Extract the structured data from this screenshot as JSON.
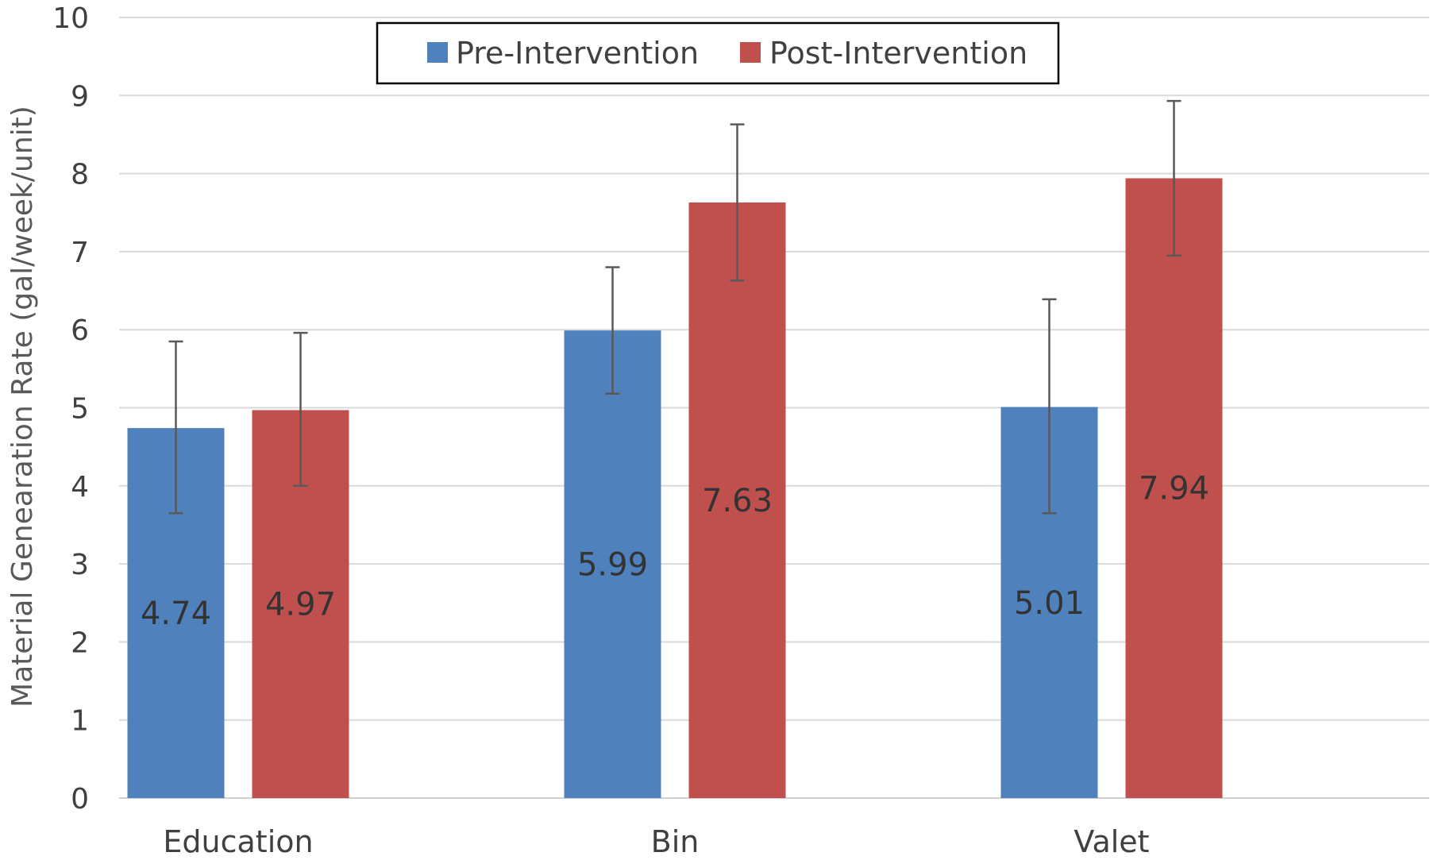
{
  "chart_data": {
    "type": "bar",
    "title": "",
    "xlabel": "",
    "ylabel": "Material Genearation Rate (gal/week/unit)",
    "ylim": [
      0,
      10
    ],
    "yticks": [
      0,
      1,
      2,
      3,
      4,
      5,
      6,
      7,
      8,
      9,
      10
    ],
    "grid": "horizontal",
    "legend_position": "top-center",
    "categories": [
      "Education",
      "Bin",
      "Valet"
    ],
    "series": [
      {
        "name": "Pre-Intervention",
        "color": "#4F81BD",
        "values": [
          4.74,
          5.99,
          5.01
        ],
        "value_labels": [
          "4.74",
          "5.99",
          "5.01"
        ],
        "error_low": [
          3.65,
          5.18,
          3.65
        ],
        "error_high": [
          5.85,
          6.8,
          6.39
        ]
      },
      {
        "name": "Post-Intervention",
        "color": "#C0504D",
        "values": [
          4.97,
          7.63,
          7.94
        ],
        "value_labels": [
          "4.97",
          "7.63",
          "7.94"
        ],
        "error_low": [
          4.0,
          6.63,
          6.95
        ],
        "error_high": [
          5.96,
          8.63,
          8.93
        ]
      }
    ]
  }
}
